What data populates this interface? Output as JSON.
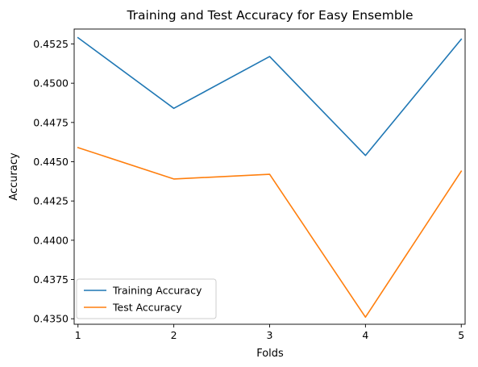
{
  "chart_data": {
    "type": "line",
    "title": "Training and Test Accuracy for Easy Ensemble",
    "xlabel": "Folds",
    "ylabel": "Accuracy",
    "x": [
      1,
      2,
      3,
      4,
      5
    ],
    "x_ticks": [
      "1",
      "2",
      "3",
      "4",
      "5"
    ],
    "xlim": [
      0.96,
      5.04
    ],
    "ylim": [
      0.43465,
      0.45345
    ],
    "y_ticks": [
      "0.4350",
      "0.4375",
      "0.4400",
      "0.4425",
      "0.4450",
      "0.4475",
      "0.4500",
      "0.4525"
    ],
    "y_tick_values": [
      0.435,
      0.4375,
      0.44,
      0.4425,
      0.445,
      0.4475,
      0.45,
      0.4525
    ],
    "grid": false,
    "legend_position": "lower-left",
    "series": [
      {
        "name": "Training Accuracy",
        "color": "#1f77b4",
        "values": [
          0.4529,
          0.4484,
          0.4517,
          0.4454,
          0.4528
        ]
      },
      {
        "name": "Test Accuracy",
        "color": "#ff7f0e",
        "values": [
          0.4459,
          0.4439,
          0.4442,
          0.4351,
          0.4444
        ]
      }
    ]
  }
}
